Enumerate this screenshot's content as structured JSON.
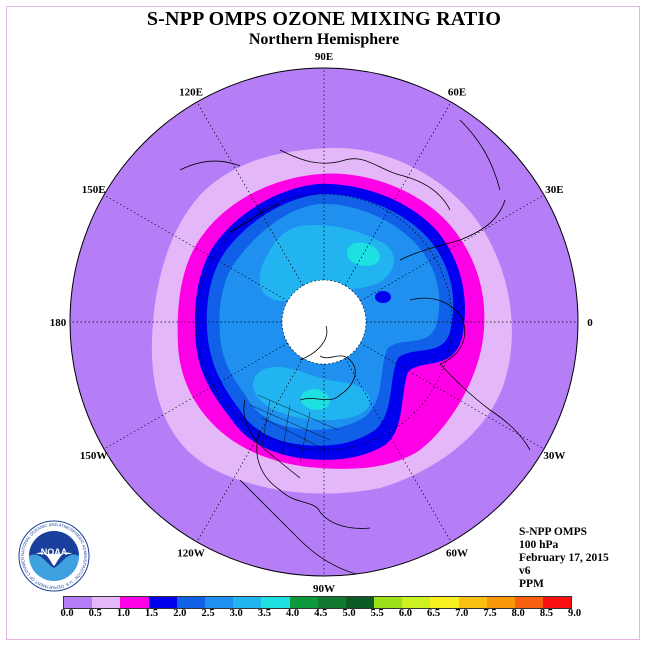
{
  "header": {
    "title": "S-NPP OMPS OZONE MIXING RATIO",
    "subtitle": "Northern Hemisphere"
  },
  "longitude_labels": [
    "90E",
    "60E",
    "30E",
    "0",
    "30W",
    "60W",
    "90W",
    "120W",
    "150W",
    "180",
    "150E",
    "120E"
  ],
  "info": {
    "instrument": "S-NPP OMPS",
    "level": "100 hPa",
    "date": "February 17, 2015",
    "version": "v6",
    "units": "PPM"
  },
  "colorbar": {
    "ticks": [
      "0.0",
      "0.5",
      "1.0",
      "1.5",
      "2.0",
      "2.5",
      "3.0",
      "3.5",
      "4.0",
      "4.5",
      "5.0",
      "5.5",
      "6.0",
      "6.5",
      "7.0",
      "7.5",
      "8.0",
      "8.5",
      "9.0"
    ],
    "colors": [
      "#b57ef7",
      "#e4b8f8",
      "#ff00e6",
      "#0000ee",
      "#1060e8",
      "#1f90f0",
      "#22b4f0",
      "#1ee0e0",
      "#0a9a3c",
      "#127a30",
      "#0c5a24",
      "#9ce01c",
      "#ccf020",
      "#f8f020",
      "#f8c010",
      "#f89808",
      "#f86010",
      "#f81010",
      "#7a4e38"
    ]
  },
  "logo": {
    "text": "NOAA",
    "ring_text": "NATIONAL OCEANIC AND ATMOSPHERIC ADMINISTRATION · U.S. DEPARTMENT OF COMMERCE",
    "colors": {
      "top": "#1a3f9c",
      "bottom": "#3fa0e0"
    }
  },
  "map_colors": {
    "outer": "#b57ef7",
    "light_pink": "#e4b8f8",
    "magenta": "#ff00e6",
    "deep_blue": "#0000ee",
    "mid_blue": "#1060e8",
    "sky_blue": "#1f90f0",
    "light_sky": "#22b4f0",
    "cyan": "#1ee0e0",
    "pole_missing": "#ffffff"
  }
}
